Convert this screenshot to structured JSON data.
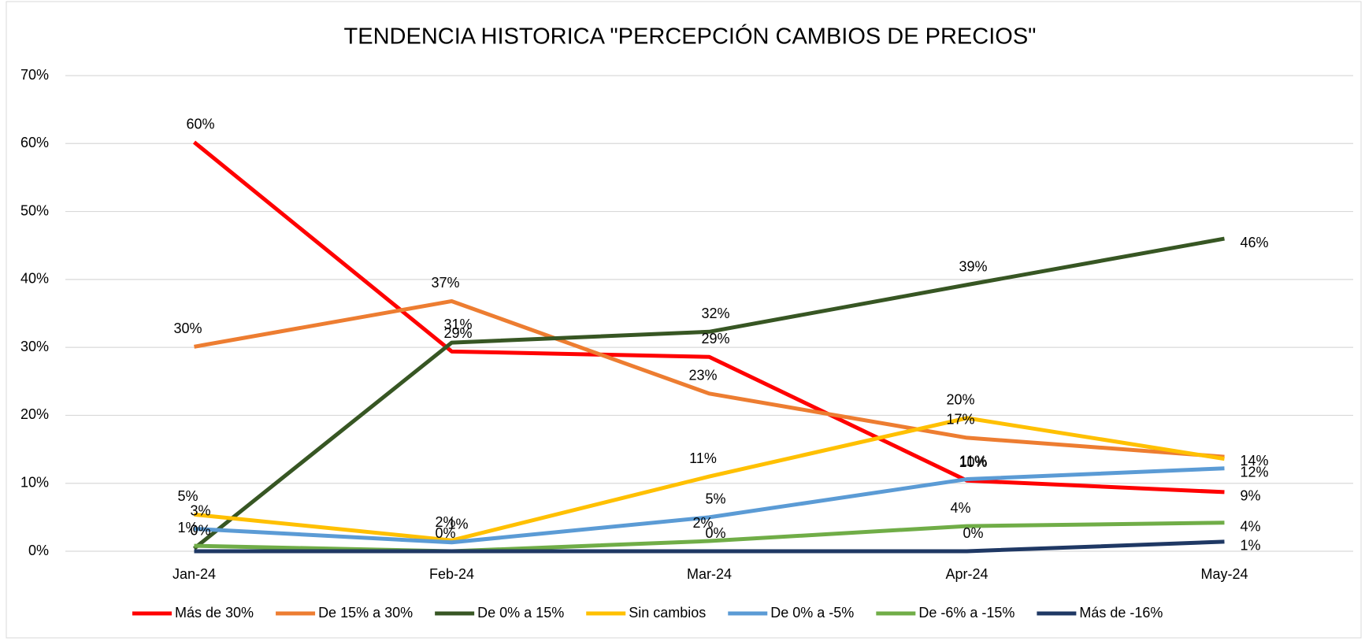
{
  "chart_data": {
    "type": "line",
    "title": "TENDENCIA HISTORICA \"PERCEPCIÓN CAMBIOS DE PRECIOS\"",
    "categories": [
      "Jan-24",
      "Feb-24",
      "Mar-24",
      "Apr-24",
      "May-24"
    ],
    "ylim": [
      0,
      70
    ],
    "yticks": [
      {
        "value": 0,
        "label": "0%"
      },
      {
        "value": 10,
        "label": "10%"
      },
      {
        "value": 20,
        "label": "20%"
      },
      {
        "value": 30,
        "label": "30%"
      },
      {
        "value": 40,
        "label": "40%"
      },
      {
        "value": 50,
        "label": "50%"
      },
      {
        "value": 60,
        "label": "60%"
      },
      {
        "value": 70,
        "label": "70%"
      }
    ],
    "grid": true,
    "legend": "bottom",
    "series": [
      {
        "name": "Más de 30%",
        "color": "#ff0000",
        "values": [
          60.2,
          29.4,
          28.6,
          10.4,
          8.7
        ],
        "value_labels": [
          "60%",
          "29%",
          "29%",
          "10%",
          "9%"
        ]
      },
      {
        "name": "De 15% a 30%",
        "color": "#ed7d31",
        "values": [
          30.1,
          36.8,
          23.2,
          16.7,
          13.9
        ],
        "value_labels": [
          "30%",
          "37%",
          "23%",
          "17%",
          "14%"
        ]
      },
      {
        "name": "De 0% a 15%",
        "color": "#375623",
        "values": [
          0.4,
          30.7,
          32.3,
          39.2,
          46.0
        ],
        "value_labels": [
          "0%",
          "31%",
          "32%",
          "39%",
          "46%"
        ]
      },
      {
        "name": "Sin cambios",
        "color": "#ffc000",
        "values": [
          5.4,
          1.6,
          11.0,
          19.6,
          13.6
        ],
        "value_labels": [
          "5%",
          "2%",
          "11%",
          "20%",
          null
        ]
      },
      {
        "name": "De 0% a -5%",
        "color": "#5b9bd5",
        "values": [
          3.3,
          1.3,
          5.0,
          10.6,
          12.2
        ],
        "value_labels": [
          "3%",
          "1%",
          "5%",
          "11%",
          "12%"
        ]
      },
      {
        "name": "De  -6% a -15%",
        "color": "#70ad47",
        "values": [
          0.8,
          0.0,
          1.5,
          3.7,
          4.2
        ],
        "value_labels": [
          "1%",
          "0%",
          "2%",
          "4%",
          "4%"
        ]
      },
      {
        "name": "Más de -16%",
        "color": "#1f3864",
        "values": [
          0.0,
          0.0,
          0.0,
          0.0,
          1.4
        ],
        "value_labels": [
          null,
          null,
          "0%",
          "0%",
          "1%"
        ]
      }
    ]
  }
}
